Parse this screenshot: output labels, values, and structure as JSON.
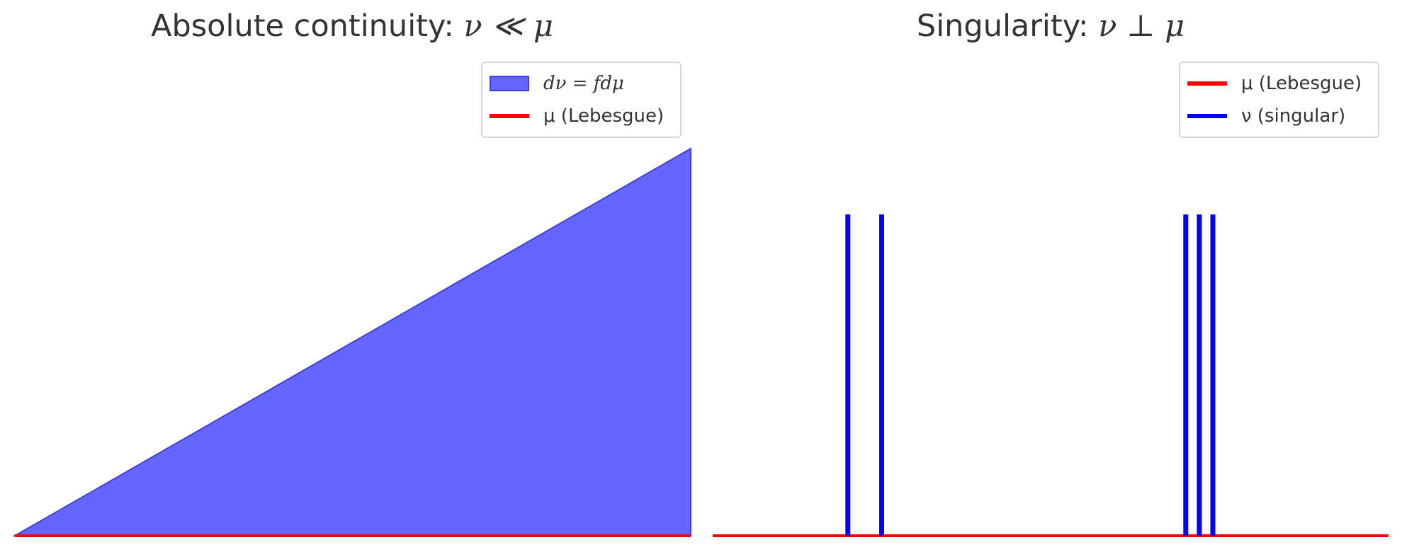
{
  "chart_data": [
    {
      "type": "area",
      "title_prefix": "Absolute continuity: ",
      "title_math": "ν ≪ μ",
      "xlabel": "",
      "ylabel": "",
      "grid": false,
      "legend_position": "top-right",
      "xlim": [
        0,
        1
      ],
      "ylim": [
        0,
        1
      ],
      "series": [
        {
          "name": "dν = fdμ",
          "kind": "fill",
          "color": "#6666ff",
          "edge_color": "#4040e0",
          "x": [
            0,
            1
          ],
          "y": [
            0,
            1
          ]
        },
        {
          "name": "μ (Lebesgue)",
          "kind": "line",
          "color": "#ff0000",
          "x": [
            0,
            1
          ],
          "y": [
            0,
            0
          ]
        }
      ]
    },
    {
      "type": "line",
      "title_prefix": "Singularity: ",
      "title_math": "ν ⊥ μ",
      "xlabel": "",
      "ylabel": "",
      "grid": false,
      "legend_position": "top-right",
      "xlim": [
        0,
        1
      ],
      "ylim": [
        0,
        1
      ],
      "series": [
        {
          "name": "μ (Lebesgue)",
          "kind": "line",
          "color": "#ff0000",
          "x": [
            0,
            1
          ],
          "y": [
            0,
            0
          ]
        },
        {
          "name": "ν (singular)",
          "kind": "spikes",
          "color": "#0000ff",
          "x": [
            0.2,
            0.25,
            0.7,
            0.72,
            0.74
          ],
          "height": 0.83
        }
      ]
    }
  ]
}
